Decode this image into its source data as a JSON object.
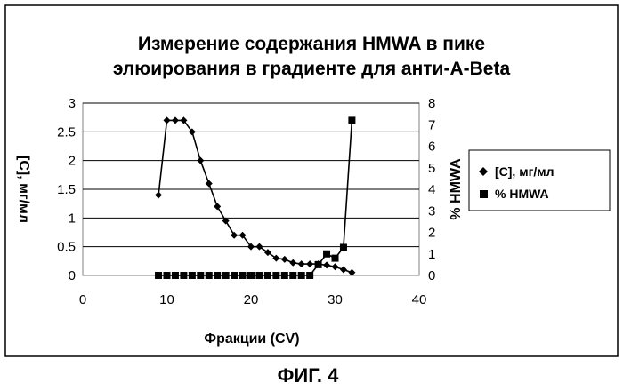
{
  "chart_data": {
    "type": "line",
    "title_line1": "Измерение содержания HMWA в пике",
    "title_line2": "элюирования в градиенте для анти-A-Beta",
    "xlabel": "Фракции (CV)",
    "ylabel": "[C], мг/мл",
    "y2label": "% HMWA",
    "xlim": [
      0,
      40
    ],
    "ylim": [
      0,
      3
    ],
    "y2lim": [
      0,
      8
    ],
    "x_ticks": [
      "0",
      "10",
      "20",
      "30",
      "40"
    ],
    "y_ticks": [
      "0",
      "0.5",
      "1",
      "1.5",
      "2",
      "2.5",
      "3"
    ],
    "y2_ticks": [
      "0",
      "1",
      "2",
      "3",
      "4",
      "5",
      "6",
      "7",
      "8"
    ],
    "grid": true,
    "legend_position": "right",
    "series": [
      {
        "name": "[C], мг/мл",
        "axis": "left",
        "marker": "diamond",
        "color": "#000000",
        "x": [
          9,
          10,
          11,
          12,
          13,
          14,
          15,
          16,
          17,
          18,
          19,
          20,
          21,
          22,
          23,
          24,
          25,
          26,
          27,
          28,
          29,
          30,
          31,
          32
        ],
        "y": [
          1.4,
          2.7,
          2.7,
          2.7,
          2.5,
          2.0,
          1.6,
          1.2,
          0.95,
          0.7,
          0.7,
          0.5,
          0.5,
          0.4,
          0.3,
          0.28,
          0.22,
          0.2,
          0.2,
          0.2,
          0.18,
          0.15,
          0.1,
          0.05
        ]
      },
      {
        "name": "% HMWA",
        "axis": "right",
        "marker": "square",
        "color": "#000000",
        "x": [
          9,
          10,
          11,
          12,
          13,
          14,
          15,
          16,
          17,
          18,
          19,
          20,
          21,
          22,
          23,
          24,
          25,
          26,
          27,
          28,
          29,
          30,
          31,
          32
        ],
        "y": [
          0,
          0,
          0,
          0,
          0,
          0,
          0,
          0,
          0,
          0,
          0,
          0,
          0,
          0,
          0,
          0,
          0,
          0,
          0,
          0.5,
          1.0,
          0.8,
          1.3,
          7.2
        ]
      }
    ]
  },
  "caption": "ФИГ. 4"
}
